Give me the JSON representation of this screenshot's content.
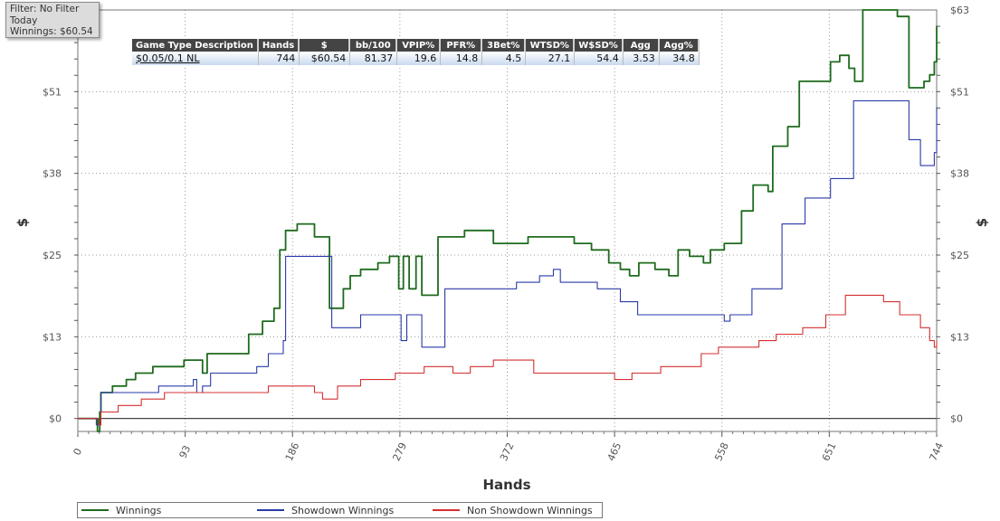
{
  "filter": {
    "line1": "Filter: No Filter",
    "line2": "Today",
    "line3": "Winnings: $60.54"
  },
  "stats_table": {
    "headers": [
      "Game Type Description",
      "Hands",
      "$",
      "bb/100",
      "VPIP%",
      "PFR%",
      "3Bet%",
      "WTSD%",
      "W$SD%",
      "Agg",
      "Agg%"
    ],
    "row": [
      "$0.05/0.1 NL",
      "744",
      "$60.54",
      "81.37",
      "19.6",
      "14.8",
      "4.5",
      "27.1",
      "54.4",
      "3.53",
      "34.8"
    ]
  },
  "chart_data": {
    "type": "line",
    "xlabel": "Hands",
    "ylabel": "$",
    "y2label": "$",
    "xlim": [
      0,
      744
    ],
    "ylim": [
      -2,
      63
    ],
    "x_ticks": [
      "0",
      "93",
      "186",
      "279",
      "372",
      "465",
      "558",
      "651",
      "744"
    ],
    "x_tick_values": [
      0,
      93,
      186,
      279,
      372,
      465,
      558,
      651,
      744
    ],
    "y_ticks": [
      "$0",
      "$13",
      "$25",
      "$38",
      "$51",
      "$63"
    ],
    "y_tick_values": [
      0,
      12.6,
      25.2,
      37.8,
      50.4,
      63
    ],
    "grid": true,
    "legend_position": "bottom-left",
    "series": [
      {
        "name": "Winnings",
        "color": "#1e6b1e",
        "points": [
          [
            0,
            0
          ],
          [
            14,
            0
          ],
          [
            17,
            -2
          ],
          [
            19,
            1
          ],
          [
            20,
            4
          ],
          [
            30,
            5
          ],
          [
            42,
            6
          ],
          [
            50,
            7
          ],
          [
            65,
            8
          ],
          [
            78,
            8
          ],
          [
            92,
            9
          ],
          [
            102,
            9
          ],
          [
            108,
            7
          ],
          [
            112,
            10
          ],
          [
            122,
            10
          ],
          [
            132,
            10
          ],
          [
            148,
            13
          ],
          [
            160,
            15
          ],
          [
            170,
            17
          ],
          [
            175,
            26
          ],
          [
            180,
            29
          ],
          [
            190,
            30
          ],
          [
            205,
            28
          ],
          [
            216,
            28
          ],
          [
            218,
            17
          ],
          [
            230,
            20
          ],
          [
            236,
            22
          ],
          [
            245,
            23
          ],
          [
            260,
            24
          ],
          [
            270,
            25
          ],
          [
            278,
            20
          ],
          [
            282,
            25
          ],
          [
            287,
            20
          ],
          [
            293,
            25
          ],
          [
            298,
            19
          ],
          [
            310,
            19
          ],
          [
            312,
            28
          ],
          [
            325,
            28
          ],
          [
            335,
            29
          ],
          [
            350,
            29
          ],
          [
            360,
            27
          ],
          [
            372,
            27
          ],
          [
            390,
            28
          ],
          [
            408,
            28
          ],
          [
            430,
            27
          ],
          [
            445,
            26
          ],
          [
            460,
            24
          ],
          [
            470,
            23
          ],
          [
            478,
            22
          ],
          [
            486,
            24
          ],
          [
            500,
            23
          ],
          [
            512,
            22
          ],
          [
            520,
            26
          ],
          [
            530,
            25
          ],
          [
            542,
            24
          ],
          [
            548,
            26
          ],
          [
            560,
            27
          ],
          [
            575,
            32
          ],
          [
            585,
            36
          ],
          [
            598,
            35
          ],
          [
            602,
            42
          ],
          [
            615,
            45
          ],
          [
            625,
            52
          ],
          [
            648,
            52
          ],
          [
            652,
            55
          ],
          [
            660,
            56
          ],
          [
            668,
            54
          ],
          [
            673,
            52
          ],
          [
            680,
            63
          ],
          [
            700,
            63
          ],
          [
            710,
            62
          ],
          [
            720,
            51
          ],
          [
            733,
            52
          ],
          [
            738,
            53
          ],
          [
            742,
            55
          ],
          [
            744,
            60.54
          ]
        ]
      },
      {
        "name": "Showdown Winnings",
        "color": "#2a3aa8",
        "points": [
          [
            0,
            0
          ],
          [
            16,
            -1
          ],
          [
            20,
            4
          ],
          [
            45,
            4
          ],
          [
            70,
            5
          ],
          [
            100,
            6
          ],
          [
            103,
            4
          ],
          [
            108,
            5
          ],
          [
            115,
            7
          ],
          [
            150,
            7
          ],
          [
            155,
            8
          ],
          [
            165,
            10
          ],
          [
            178,
            12
          ],
          [
            180,
            25
          ],
          [
            218,
            25
          ],
          [
            220,
            14
          ],
          [
            240,
            14
          ],
          [
            245,
            16
          ],
          [
            275,
            16
          ],
          [
            280,
            12
          ],
          [
            285,
            16
          ],
          [
            293,
            16
          ],
          [
            298,
            11
          ],
          [
            315,
            11
          ],
          [
            318,
            20
          ],
          [
            370,
            20
          ],
          [
            380,
            21
          ],
          [
            400,
            22
          ],
          [
            412,
            23
          ],
          [
            418,
            21
          ],
          [
            440,
            21
          ],
          [
            450,
            20
          ],
          [
            470,
            18
          ],
          [
            485,
            16
          ],
          [
            518,
            16
          ],
          [
            540,
            16
          ],
          [
            560,
            15
          ],
          [
            565,
            16
          ],
          [
            578,
            16
          ],
          [
            584,
            20
          ],
          [
            605,
            20
          ],
          [
            610,
            30
          ],
          [
            630,
            34
          ],
          [
            652,
            37
          ],
          [
            668,
            37
          ],
          [
            672,
            49
          ],
          [
            700,
            49
          ],
          [
            720,
            43
          ],
          [
            730,
            39
          ],
          [
            742,
            41
          ],
          [
            744,
            48
          ]
        ]
      },
      {
        "name": "Non Showdown Winnings",
        "color": "#d43030",
        "points": [
          [
            0,
            0
          ],
          [
            18,
            -1
          ],
          [
            20,
            1
          ],
          [
            35,
            2
          ],
          [
            55,
            3
          ],
          [
            75,
            4
          ],
          [
            95,
            4
          ],
          [
            110,
            4
          ],
          [
            120,
            4
          ],
          [
            150,
            4
          ],
          [
            165,
            5
          ],
          [
            185,
            5
          ],
          [
            205,
            4
          ],
          [
            212,
            3
          ],
          [
            225,
            5
          ],
          [
            245,
            6
          ],
          [
            260,
            6
          ],
          [
            275,
            7
          ],
          [
            300,
            8
          ],
          [
            310,
            8
          ],
          [
            325,
            7
          ],
          [
            340,
            8
          ],
          [
            350,
            8
          ],
          [
            360,
            9
          ],
          [
            372,
            9
          ],
          [
            395,
            7
          ],
          [
            415,
            7
          ],
          [
            440,
            7
          ],
          [
            465,
            6
          ],
          [
            480,
            7
          ],
          [
            495,
            7
          ],
          [
            505,
            8
          ],
          [
            525,
            8
          ],
          [
            540,
            10
          ],
          [
            555,
            11
          ],
          [
            570,
            11
          ],
          [
            590,
            12
          ],
          [
            605,
            13
          ],
          [
            628,
            14
          ],
          [
            648,
            16
          ],
          [
            658,
            16
          ],
          [
            665,
            19
          ],
          [
            680,
            19
          ],
          [
            698,
            18
          ],
          [
            712,
            16
          ],
          [
            730,
            14
          ],
          [
            738,
            12
          ],
          [
            742,
            11
          ],
          [
            744,
            12
          ]
        ]
      }
    ]
  }
}
